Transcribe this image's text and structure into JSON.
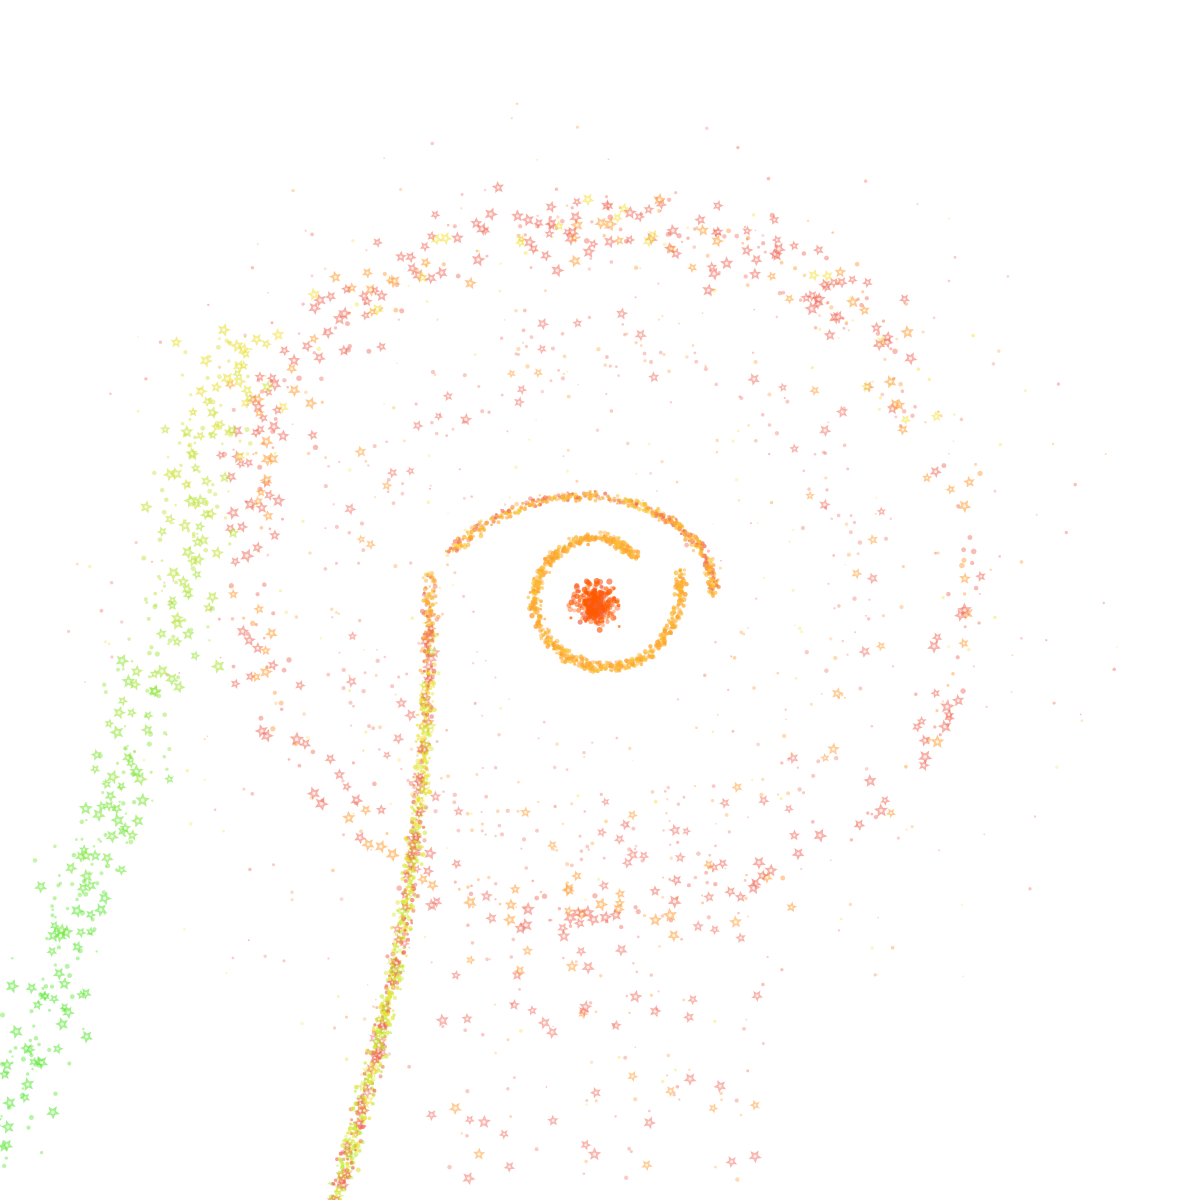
{
  "artwork": {
    "description_kind": "generative particle spiral",
    "background_color": "#ffffff",
    "palette": {
      "core": "#ff5a00",
      "orange": "#ff9a2e",
      "coral": "#f26b5b",
      "yellow": "#f5e03a",
      "lime": "#b6f03a",
      "green": "#5fe83a"
    },
    "shapes": [
      "star-flower",
      "dot"
    ]
  }
}
